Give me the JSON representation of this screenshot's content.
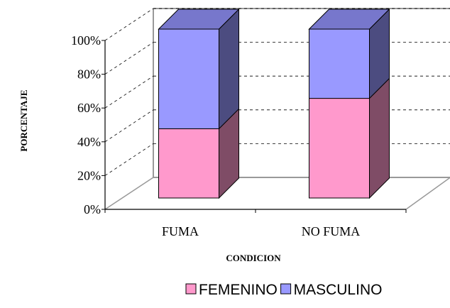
{
  "chart_data": {
    "type": "bar",
    "stacked": true,
    "percent_stacked": true,
    "three_d": true,
    "categories": [
      "FUMA",
      "NO FUMA"
    ],
    "series": [
      {
        "name": "FEMENINO",
        "values": [
          41,
          59
        ],
        "color": "#ff99cc",
        "side_color": "#7f4c66",
        "top_color": "#ff99cc"
      },
      {
        "name": "MASCULINO",
        "values": [
          59,
          41
        ],
        "color": "#9999ff",
        "side_color": "#4c4c80",
        "top_color": "#7777cc"
      }
    ],
    "xlabel": "CONDICION",
    "ylabel": "PORCENTAJE",
    "yticks": [
      "0%",
      "20%",
      "40%",
      "60%",
      "80%",
      "100%"
    ],
    "ylim": [
      0,
      100
    ],
    "grid": true,
    "legend_position": "bottom-right"
  }
}
